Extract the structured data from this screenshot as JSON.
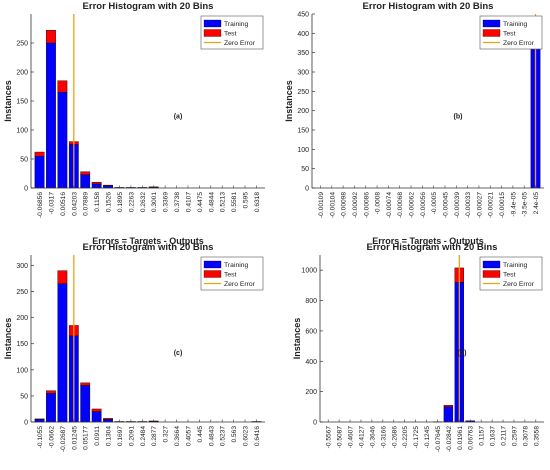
{
  "chart_data": [
    {
      "type": "bar",
      "title": "Error Histogram with 20 Bins",
      "xlabel": "Errors = Targets - Outputs",
      "ylabel": "Instances",
      "panel_label": "(a)",
      "ylim": [
        0,
        300
      ],
      "yticks": [
        "0",
        "50",
        "100",
        "150",
        "200",
        "250"
      ],
      "zero_error_bin": 3,
      "categories": [
        "-0.06856",
        "-0.0317",
        "0.00516",
        "0.04203",
        "0.07889",
        "0.1158",
        "0.1526",
        "0.1895",
        "0.2263",
        "0.2632",
        "0.3001",
        "0.3369",
        "0.3738",
        "0.4107",
        "0.4475",
        "0.4844",
        "0.5213",
        "0.5581",
        "0.595",
        "0.6318"
      ],
      "series": [
        {
          "name": "Training",
          "values": [
            55,
            250,
            165,
            75,
            23,
            7,
            4,
            1,
            1,
            1,
            1,
            0,
            0,
            0,
            0,
            0,
            0,
            0,
            0,
            0
          ]
        },
        {
          "name": "Test",
          "values": [
            7,
            22,
            20,
            5,
            5,
            3,
            1,
            0,
            0,
            0,
            1,
            0,
            0,
            0,
            0,
            0,
            0,
            0,
            0,
            0
          ]
        }
      ],
      "legend": [
        "Training",
        "Test",
        "Zero Error"
      ],
      "legend_position": "top-right",
      "colors": {
        "training": "#0000ff",
        "test": "#ff0000",
        "zero_error": "#e8a317"
      }
    },
    {
      "type": "bar",
      "title": "Error Histogram with 20 Bins",
      "xlabel": "Errors = Targets - Outputs",
      "ylabel": "Instances",
      "panel_label": "(b)",
      "ylim": [
        0,
        450
      ],
      "yticks": [
        "0",
        "50",
        "100",
        "150",
        "200",
        "250",
        "300",
        "350",
        "400",
        "450"
      ],
      "zero_error_bin": 19,
      "categories": [
        "-0.00109",
        "-0.00104",
        "-0.00098",
        "-0.00092",
        "-0.00086",
        "-0.0008",
        "-0.00074",
        "-0.00068",
        "-0.00062",
        "-0.00056",
        "-0.0005",
        "-0.00045",
        "-0.00039",
        "-0.00033",
        "-0.00027",
        "-0.00021",
        "-0.00015",
        "-9.4e-05",
        "-3.5e-05",
        "2.4e-05"
      ],
      "series": [
        {
          "name": "Training",
          "values": [
            0,
            0,
            0,
            0,
            0,
            0,
            0,
            0,
            0,
            0,
            0,
            0,
            0,
            0,
            0,
            0,
            0,
            0,
            0,
            390
          ]
        },
        {
          "name": "Test",
          "values": [
            0,
            0,
            0,
            0,
            0,
            0,
            0,
            0,
            0,
            0,
            0,
            0,
            0,
            0,
            0,
            0,
            0,
            0,
            0,
            50
          ]
        }
      ],
      "legend": [
        "Training",
        "Test",
        "Zero Error"
      ],
      "legend_position": "top-right",
      "colors": {
        "training": "#0000ff",
        "test": "#ff0000",
        "zero_error": "#e8a317"
      }
    },
    {
      "type": "bar",
      "title": "Error Histogram with 20 Bins",
      "xlabel": "Errors = Targets - Outputs",
      "ylabel": "Instances",
      "panel_label": "(c)",
      "ylim": [
        0,
        320
      ],
      "yticks": [
        "0",
        "50",
        "100",
        "150",
        "200",
        "250",
        "300"
      ],
      "zero_error_bin": 3,
      "categories": [
        "-0.1055",
        "-0.0662",
        "-0.02687",
        "0.01245",
        "0.05177",
        "0.0911",
        "0.1304",
        "0.1697",
        "0.2091",
        "0.2484",
        "0.2877",
        "0.327",
        "0.3664",
        "0.4057",
        "0.445",
        "0.4843",
        "0.5237",
        "0.563",
        "0.6023",
        "0.6416"
      ],
      "series": [
        {
          "name": "Training",
          "values": [
            5,
            55,
            265,
            165,
            70,
            20,
            5,
            1,
            1,
            1,
            1,
            0,
            0,
            0,
            0,
            0,
            0,
            0,
            0,
            1
          ]
        },
        {
          "name": "Test",
          "values": [
            1,
            5,
            25,
            20,
            5,
            5,
            2,
            0,
            0,
            0,
            1,
            0,
            0,
            0,
            0,
            0,
            0,
            0,
            0,
            0
          ]
        }
      ],
      "legend": [
        "Training",
        "Test",
        "Zero Error"
      ],
      "legend_position": "top-right",
      "colors": {
        "training": "#0000ff",
        "test": "#ff0000",
        "zero_error": "#e8a317"
      }
    },
    {
      "type": "bar",
      "title": "Error Histogram with 20 Bins",
      "xlabel": "Errors = Targets - Outputs",
      "ylabel": "Instances",
      "panel_label": "(d)",
      "ylim": [
        0,
        1100
      ],
      "yticks": [
        "0",
        "200",
        "400",
        "600",
        "800",
        "1000"
      ],
      "zero_error_bin": 12,
      "categories": [
        "-0.5567",
        "-0.5087",
        "-0.4607",
        "-0.4127",
        "-0.3646",
        "-0.3166",
        "-0.2686",
        "-0.2205",
        "-0.1725",
        "-0.1245",
        "-0.07645",
        "-0.02842",
        "0.01961",
        "0.06763",
        "0.1157",
        "0.1637",
        "0.2117",
        "0.2597",
        "0.3078",
        "0.3558"
      ],
      "series": [
        {
          "name": "Training",
          "values": [
            0,
            0,
            0,
            0,
            0,
            0,
            0,
            0,
            0,
            0,
            2,
            100,
            920,
            8,
            0,
            0,
            0,
            0,
            0,
            0
          ]
        },
        {
          "name": "Test",
          "values": [
            0,
            0,
            0,
            0,
            0,
            0,
            0,
            0,
            0,
            0,
            0,
            10,
            95,
            0,
            0,
            0,
            0,
            0,
            0,
            0
          ]
        }
      ],
      "legend": [
        "Training",
        "Test",
        "Zero Error"
      ],
      "legend_position": "top-right",
      "colors": {
        "training": "#0000ff",
        "test": "#ff0000",
        "zero_error": "#e8a317"
      }
    }
  ]
}
